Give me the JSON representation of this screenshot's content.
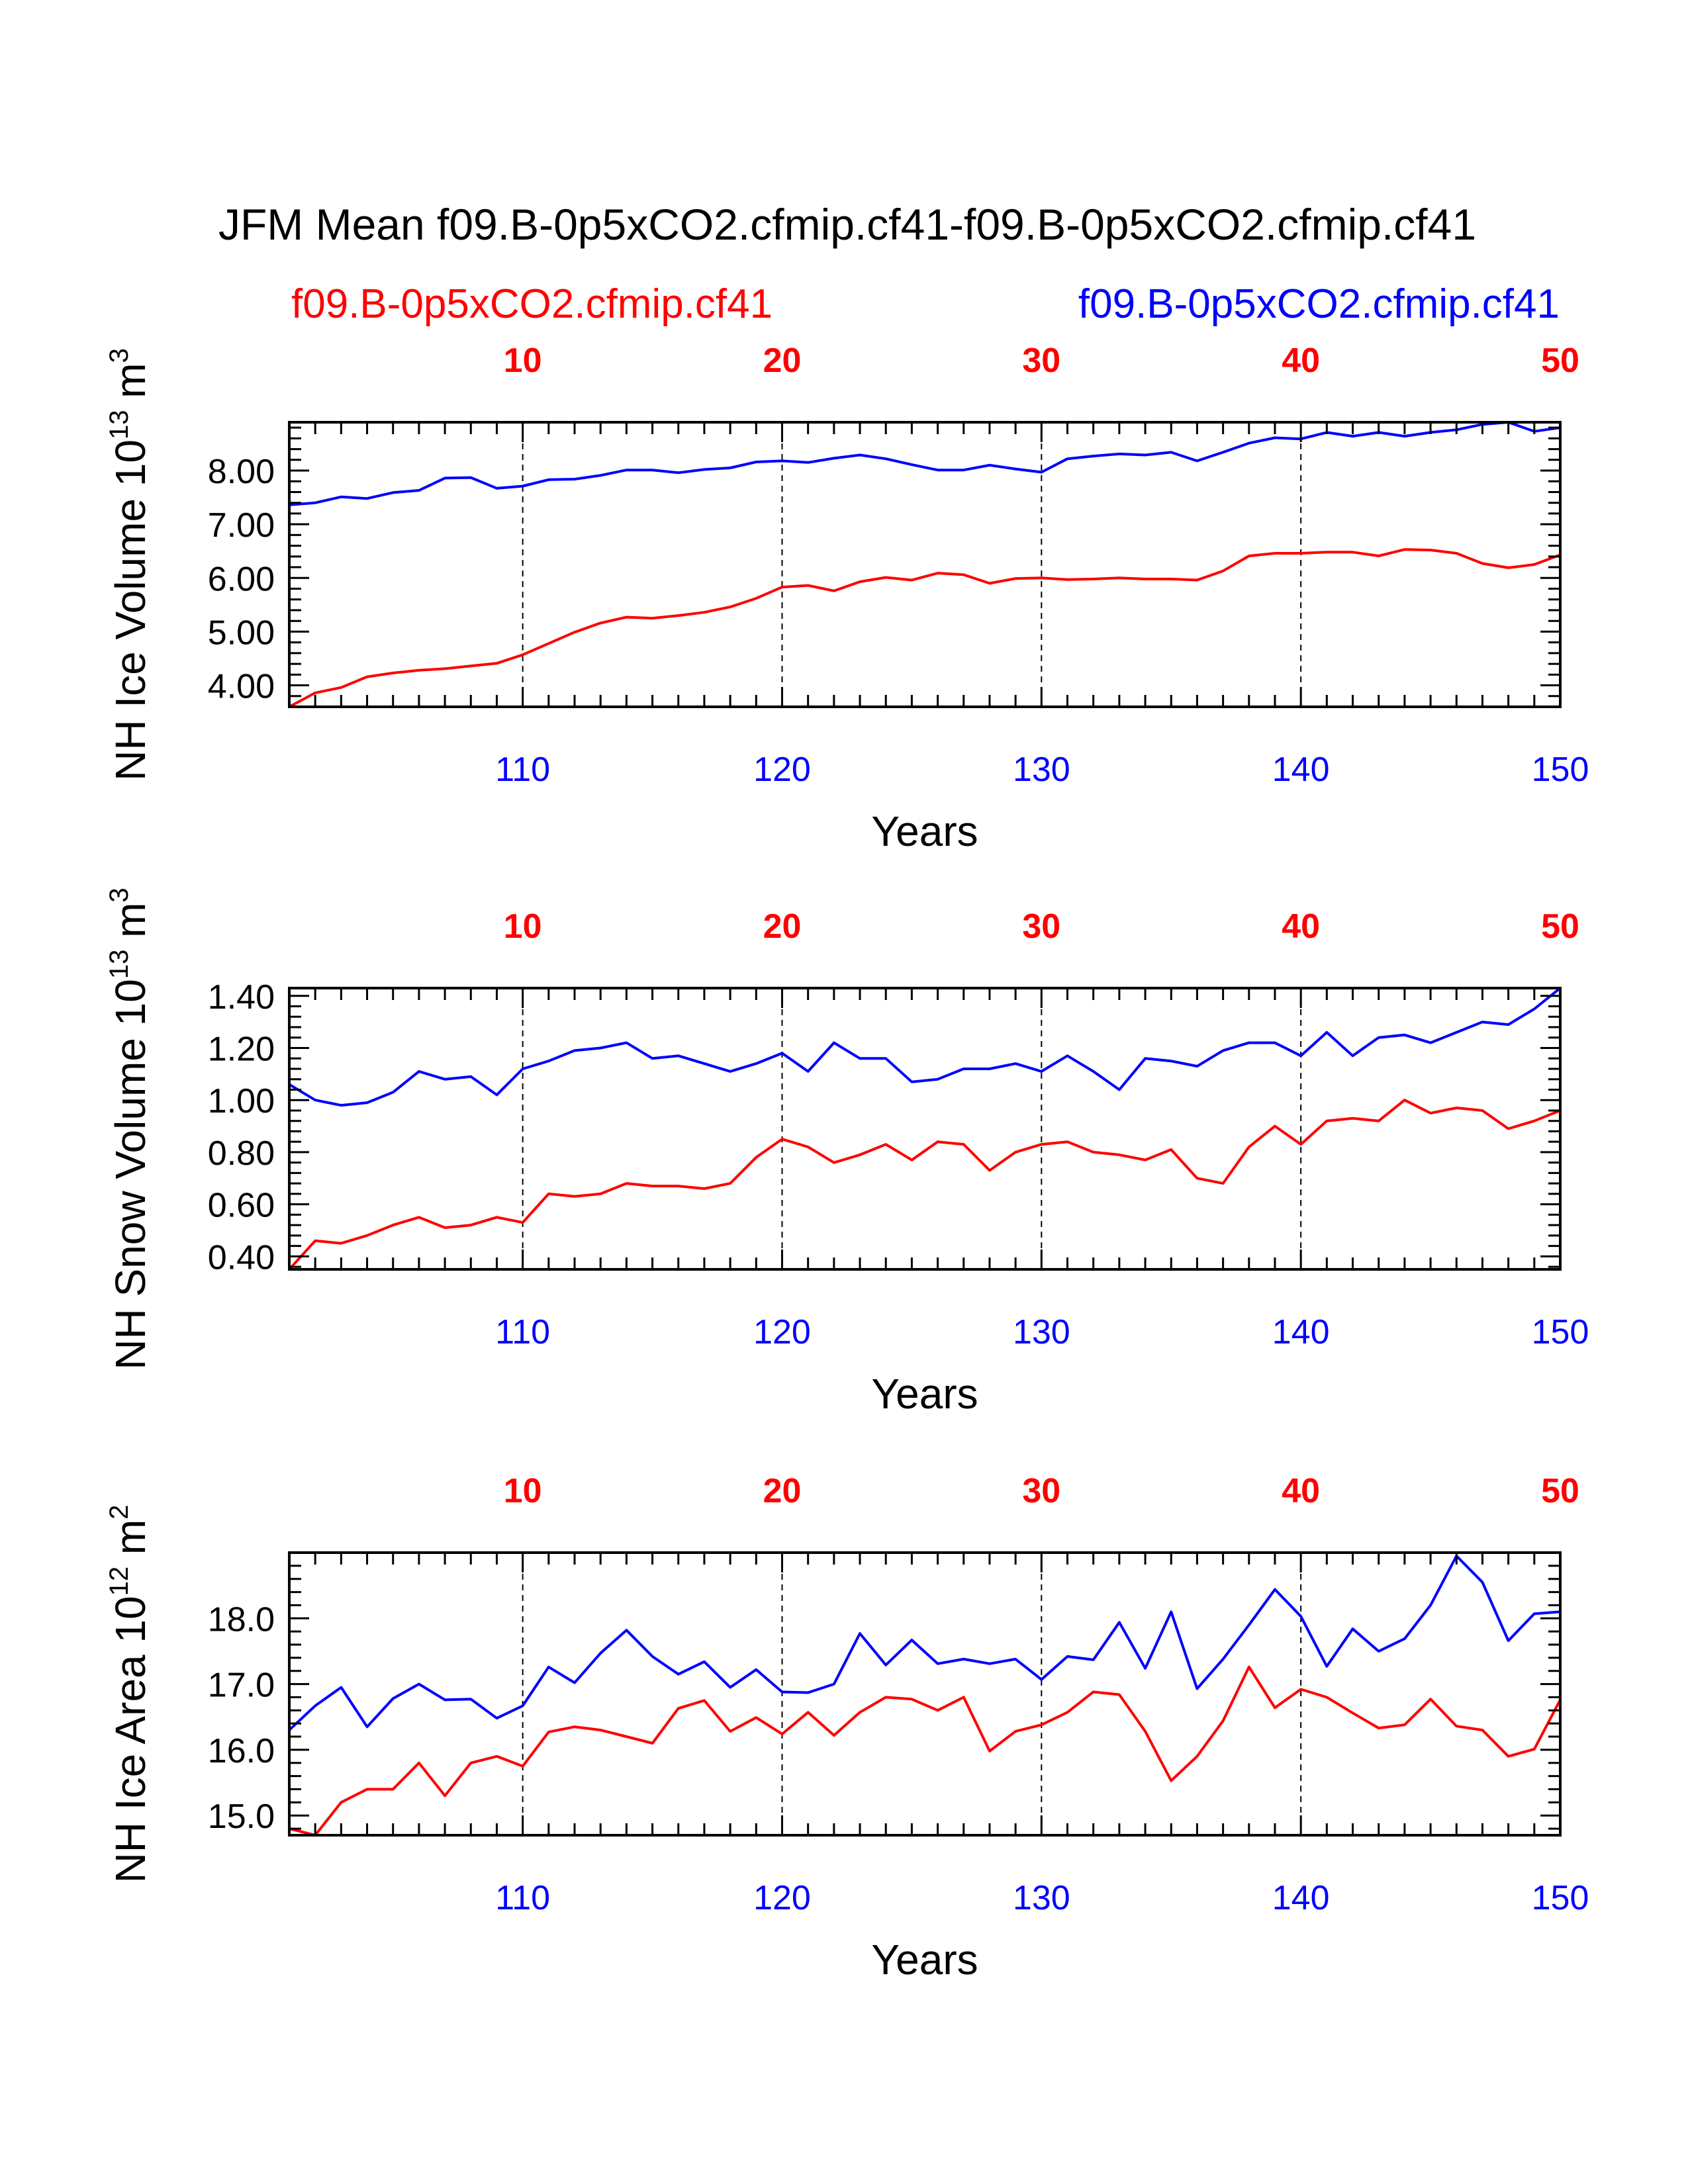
{
  "title": "JFM Mean f09.B-0p5xCO2.cfmip.cf41-f09.B-0p5xCO2.cfmip.cf41",
  "legend": {
    "left_case": "f09.B-0p5xCO2.cfmip.cf41",
    "right_case": "f09.B-0p5xCO2.cfmip.cf41",
    "left_color": "#ff0000",
    "right_color": "#0000ff"
  },
  "colors": {
    "series_red": "#ff0000",
    "series_blue": "#0000ff",
    "axis": "#000000"
  },
  "chart_data": [
    {
      "type": "line",
      "ylabel_main": "NH Ice Volume 10",
      "ylabel_exp": "13",
      "ylabel_unit": " m",
      "ylabel_unit_exp": "3",
      "xlabel": "Years",
      "xlim": [
        101,
        150
      ],
      "ylim": [
        3.6,
        8.9
      ],
      "yticks": [
        4.0,
        5.0,
        6.0,
        7.0,
        8.0
      ],
      "ytick_labels": [
        "4.00",
        "5.00",
        "6.00",
        "7.00",
        "8.00"
      ],
      "xticks_bottom": [
        110,
        120,
        130,
        140,
        150
      ],
      "xtick_labels_bottom": [
        "110",
        "120",
        "130",
        "140",
        "150"
      ],
      "xticks_top": [
        10,
        20,
        30,
        40,
        50
      ],
      "xtick_labels_top": [
        "10",
        "20",
        "30",
        "40",
        "50"
      ],
      "grid": "dashed vertical lines at 110, 120, 130, 140",
      "series": [
        {
          "color": "#ff0000",
          "values": [
            3.6,
            3.86,
            3.96,
            4.16,
            4.23,
            4.28,
            4.31,
            4.36,
            4.41,
            4.57,
            4.78,
            4.99,
            5.16,
            5.27,
            5.25,
            5.3,
            5.36,
            5.46,
            5.62,
            5.83,
            5.86,
            5.76,
            5.93,
            6.01,
            5.96,
            6.09,
            6.06,
            5.9,
            5.99,
            6.0,
            5.97,
            5.98,
            6.0,
            5.98,
            5.98,
            5.96,
            6.13,
            6.41,
            6.46,
            6.46,
            6.48,
            6.48,
            6.41,
            6.53,
            6.52,
            6.46,
            6.27,
            6.19,
            6.25,
            6.43
          ]
        },
        {
          "color": "#0000ff",
          "values": [
            7.36,
            7.4,
            7.51,
            7.48,
            7.59,
            7.63,
            7.86,
            7.87,
            7.67,
            7.71,
            7.83,
            7.84,
            7.91,
            8.01,
            8.01,
            7.96,
            8.02,
            8.05,
            8.16,
            8.18,
            8.15,
            8.23,
            8.29,
            8.22,
            8.11,
            8.01,
            8.01,
            8.1,
            8.03,
            7.97,
            8.22,
            8.27,
            8.31,
            8.29,
            8.34,
            8.18,
            8.34,
            8.51,
            8.61,
            8.59,
            8.71,
            8.64,
            8.71,
            8.64,
            8.71,
            8.76,
            8.86,
            8.9,
            8.73,
            8.8
          ]
        }
      ]
    },
    {
      "type": "line",
      "ylabel_main": "NH Snow Volume 10",
      "ylabel_exp": "13",
      "ylabel_unit": " m",
      "ylabel_unit_exp": "3",
      "xlabel": "Years",
      "xlim": [
        101,
        150
      ],
      "ylim": [
        0.35,
        1.43
      ],
      "yticks": [
        0.4,
        0.6,
        0.8,
        1.0,
        1.2,
        1.4
      ],
      "ytick_labels": [
        "0.40",
        "0.60",
        "0.80",
        "1.00",
        "1.20",
        "1.40"
      ],
      "xticks_bottom": [
        110,
        120,
        130,
        140,
        150
      ],
      "xtick_labels_bottom": [
        "110",
        "120",
        "130",
        "140",
        "150"
      ],
      "xticks_top": [
        10,
        20,
        30,
        40,
        50
      ],
      "xtick_labels_top": [
        "10",
        "20",
        "30",
        "40",
        "50"
      ],
      "grid": "dashed vertical lines at 110, 120, 130, 140",
      "series": [
        {
          "color": "#ff0000",
          "values": [
            0.35,
            0.46,
            0.45,
            0.48,
            0.52,
            0.55,
            0.51,
            0.52,
            0.55,
            0.53,
            0.64,
            0.63,
            0.64,
            0.68,
            0.67,
            0.67,
            0.66,
            0.68,
            0.78,
            0.85,
            0.82,
            0.76,
            0.79,
            0.83,
            0.77,
            0.84,
            0.83,
            0.73,
            0.8,
            0.83,
            0.84,
            0.8,
            0.79,
            0.77,
            0.81,
            0.7,
            0.68,
            0.82,
            0.9,
            0.83,
            0.92,
            0.93,
            0.92,
            1.0,
            0.95,
            0.97,
            0.96,
            0.89,
            0.92,
            0.96
          ]
        },
        {
          "color": "#0000ff",
          "values": [
            1.06,
            1.0,
            0.98,
            0.99,
            1.03,
            1.11,
            1.08,
            1.09,
            1.02,
            1.12,
            1.15,
            1.19,
            1.2,
            1.22,
            1.16,
            1.17,
            1.14,
            1.11,
            1.14,
            1.18,
            1.11,
            1.22,
            1.16,
            1.16,
            1.07,
            1.08,
            1.12,
            1.12,
            1.14,
            1.11,
            1.17,
            1.11,
            1.04,
            1.16,
            1.15,
            1.13,
            1.19,
            1.22,
            1.22,
            1.17,
            1.26,
            1.17,
            1.24,
            1.25,
            1.22,
            1.26,
            1.3,
            1.29,
            1.35,
            1.43
          ]
        }
      ]
    },
    {
      "type": "line",
      "ylabel_main": "NH Ice Area 10",
      "ylabel_exp": "12",
      "ylabel_unit": " m",
      "ylabel_unit_exp": "2",
      "xlabel": "Years",
      "xlim": [
        101,
        150
      ],
      "ylim": [
        14.7,
        19.0
      ],
      "yticks": [
        15.0,
        16.0,
        17.0,
        18.0
      ],
      "ytick_labels": [
        "15.0",
        "16.0",
        "17.0",
        "18.0"
      ],
      "xticks_bottom": [
        110,
        120,
        130,
        140,
        150
      ],
      "xtick_labels_bottom": [
        "110",
        "120",
        "130",
        "140",
        "150"
      ],
      "xticks_top": [
        10,
        20,
        30,
        40,
        50
      ],
      "xtick_labels_top": [
        "10",
        "20",
        "30",
        "40",
        "50"
      ],
      "grid": "dashed vertical lines at 110, 120, 130, 140",
      "series": [
        {
          "color": "#ff0000",
          "values": [
            14.8,
            14.7,
            15.2,
            15.4,
            15.4,
            15.8,
            15.3,
            15.8,
            15.9,
            15.75,
            16.27,
            16.35,
            16.3,
            16.2,
            16.1,
            16.63,
            16.75,
            16.28,
            16.49,
            16.24,
            16.57,
            16.22,
            16.57,
            16.8,
            16.77,
            16.6,
            16.8,
            15.98,
            16.28,
            16.38,
            16.57,
            16.88,
            16.84,
            16.28,
            15.53,
            15.9,
            16.44,
            17.26,
            16.64,
            16.92,
            16.8,
            16.56,
            16.33,
            16.38,
            16.77,
            16.36,
            16.3,
            15.9,
            16.01,
            16.76
          ]
        },
        {
          "color": "#0000ff",
          "values": [
            16.3,
            16.67,
            16.95,
            16.35,
            16.78,
            17.0,
            16.76,
            16.77,
            16.48,
            16.67,
            17.26,
            17.02,
            17.47,
            17.82,
            17.42,
            17.15,
            17.34,
            16.95,
            17.22,
            16.88,
            16.87,
            17.0,
            17.77,
            17.29,
            17.67,
            17.31,
            17.38,
            17.31,
            17.38,
            17.07,
            17.42,
            17.37,
            17.94,
            17.24,
            18.1,
            16.93,
            17.38,
            17.9,
            18.44,
            18.03,
            17.27,
            17.84,
            17.5,
            17.69,
            18.2,
            18.95,
            18.55,
            17.66,
            18.07,
            18.1
          ]
        }
      ]
    }
  ]
}
